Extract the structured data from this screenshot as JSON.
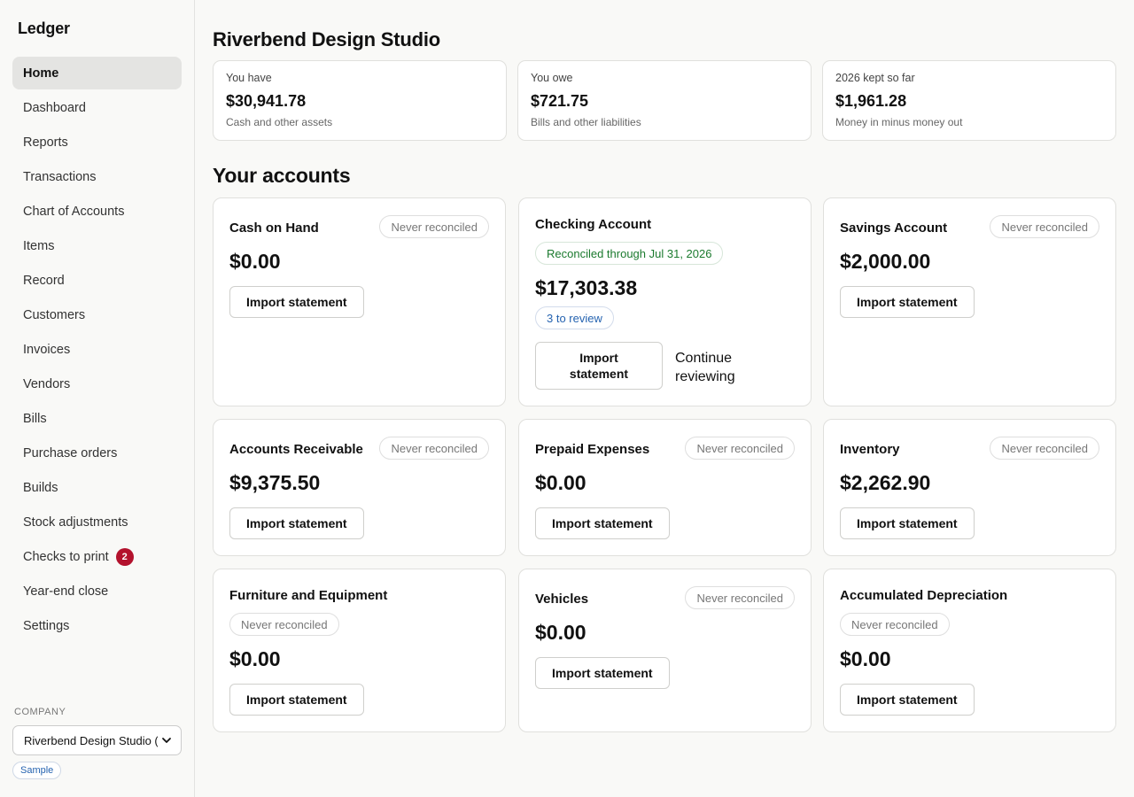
{
  "app": {
    "brand": "Ledger"
  },
  "sidebar": {
    "items": [
      {
        "label": "Home"
      },
      {
        "label": "Dashboard"
      },
      {
        "label": "Reports"
      },
      {
        "label": "Transactions"
      },
      {
        "label": "Chart of Accounts"
      },
      {
        "label": "Items"
      },
      {
        "label": "Record"
      },
      {
        "label": "Customers"
      },
      {
        "label": "Invoices"
      },
      {
        "label": "Vendors"
      },
      {
        "label": "Bills"
      },
      {
        "label": "Purchase orders"
      },
      {
        "label": "Builds"
      },
      {
        "label": "Stock adjustments"
      },
      {
        "label": "Checks to print",
        "badge": "2"
      },
      {
        "label": "Year-end close"
      },
      {
        "label": "Settings"
      }
    ],
    "company_label": "COMPANY",
    "company_selected": "Riverbend Design Studio (Sample)",
    "sample_badge": "Sample",
    "badge_color": "#b3122d"
  },
  "page": {
    "title": "Riverbend Design Studio",
    "summary": [
      {
        "label": "You have",
        "value": "$30,941.78",
        "sub": "Cash and other assets"
      },
      {
        "label": "You owe",
        "value": "$721.75",
        "sub": "Bills and other liabilities"
      },
      {
        "label": "2026 kept so far",
        "value": "$1,961.28",
        "sub": "Money in minus money out"
      }
    ],
    "accounts_title": "Your accounts",
    "accounts": [
      {
        "name": "Cash on Hand",
        "status": "Never reconciled",
        "amount": "$0.00",
        "button": "Import statement"
      },
      {
        "name": "Checking Account",
        "status": "Reconciled through Jul 31, 2026",
        "amount": "$17,303.38",
        "review": "3 to review",
        "button": "Import statement",
        "secondary": "Continue reviewing"
      },
      {
        "name": "Savings Account",
        "status": "Never reconciled",
        "amount": "$2,000.00",
        "button": "Import statement"
      },
      {
        "name": "Accounts Receivable",
        "status": "Never reconciled",
        "amount": "$9,375.50",
        "button": "Import statement"
      },
      {
        "name": "Prepaid Expenses",
        "status": "Never reconciled",
        "amount": "$0.00",
        "button": "Import statement"
      },
      {
        "name": "Inventory",
        "status": "Never reconciled",
        "amount": "$2,262.90",
        "button": "Import statement"
      },
      {
        "name": "Furniture and Equipment",
        "status": "Never reconciled",
        "amount": "$0.00",
        "button": "Import statement"
      },
      {
        "name": "Vehicles",
        "status": "Never reconciled",
        "amount": "$0.00",
        "button": "Import statement"
      },
      {
        "name": "Accumulated Depreciation",
        "status": "Never reconciled",
        "amount": "$0.00",
        "button": "Import statement"
      }
    ],
    "colors": {
      "reconciled": "#1b7a2e",
      "review": "#2563b0",
      "muted": "#777777"
    }
  }
}
